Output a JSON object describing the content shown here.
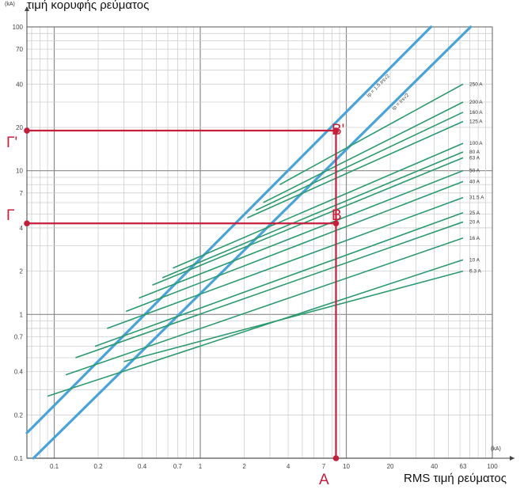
{
  "chart_data": {
    "type": "line",
    "scale": "log-log",
    "ylabel": "τιμή κορυφής ρεύματος",
    "xlabel": "RMS τιμή ρεύματος",
    "y_unit": "(kA)",
    "x_unit": "(kA)",
    "xlim": [
      0.065,
      100
    ],
    "ylim": [
      0.1,
      100
    ],
    "x_ticks": [
      {
        "v": 0.1,
        "t": "0.1"
      },
      {
        "v": 0.2,
        "t": "0.2"
      },
      {
        "v": 0.4,
        "t": "0.4"
      },
      {
        "v": 0.7,
        "t": "0.7"
      },
      {
        "v": 1,
        "t": "1"
      },
      {
        "v": 2,
        "t": "2"
      },
      {
        "v": 4,
        "t": "4"
      },
      {
        "v": 7,
        "t": "7"
      },
      {
        "v": 10,
        "t": "10"
      },
      {
        "v": 20,
        "t": "20"
      },
      {
        "v": 40,
        "t": "40"
      },
      {
        "v": 63,
        "t": "63"
      },
      {
        "v": 100,
        "t": "100"
      }
    ],
    "y_ticks": [
      {
        "v": 0.1,
        "t": "0.1"
      },
      {
        "v": 0.2,
        "t": "0.2"
      },
      {
        "v": 0.4,
        "t": "0.4"
      },
      {
        "v": 0.7,
        "t": "0.7"
      },
      {
        "v": 1,
        "t": "1"
      },
      {
        "v": 2,
        "t": "2"
      },
      {
        "v": 4,
        "t": "4"
      },
      {
        "v": 7,
        "t": "7"
      },
      {
        "v": 10,
        "t": "10"
      },
      {
        "v": 20,
        "t": "20"
      },
      {
        "v": 40,
        "t": "40"
      },
      {
        "v": 70,
        "t": "70"
      },
      {
        "v": 100,
        "t": "100"
      }
    ],
    "grid": true,
    "limit_lines": [
      {
        "name": "Ip = 1.5 Irs√2",
        "color": "#4aa3d8",
        "points": [
          [
            0.065,
            0.15
          ],
          [
            38,
            100
          ]
        ]
      },
      {
        "name": "Ip = Irs√2",
        "color": "#4aa3d8",
        "points": [
          [
            0.072,
            0.1
          ],
          [
            71,
            100
          ]
        ]
      }
    ],
    "series": [
      {
        "name": "250 A",
        "color": "#2a9a6e",
        "points": [
          [
            3.5,
            8
          ],
          [
            63,
            40
          ]
        ]
      },
      {
        "name": "200 A",
        "color": "#2a9a6e",
        "points": [
          [
            2.7,
            6
          ],
          [
            63,
            30
          ]
        ]
      },
      {
        "name": "160 A",
        "color": "#2a9a6e",
        "points": [
          [
            2.4,
            5.3
          ],
          [
            63,
            25.5
          ]
        ]
      },
      {
        "name": "125 A",
        "color": "#2a9a6e",
        "points": [
          [
            2.1,
            4.7
          ],
          [
            63,
            22
          ]
        ]
      },
      {
        "name": "100 A",
        "color": "#2a9a6e",
        "points": [
          [
            0.65,
            2.1
          ],
          [
            63,
            15.5
          ]
        ]
      },
      {
        "name": "80 A",
        "color": "#2a9a6e",
        "points": [
          [
            0.55,
            1.8
          ],
          [
            63,
            13.5
          ]
        ]
      },
      {
        "name": "63 A",
        "color": "#2a9a6e",
        "points": [
          [
            0.47,
            1.6
          ],
          [
            63,
            12.3
          ]
        ]
      },
      {
        "name": "50 A",
        "color": "#2a9a6e",
        "points": [
          [
            0.38,
            1.3
          ],
          [
            63,
            10
          ]
        ]
      },
      {
        "name": "40 A",
        "color": "#2a9a6e",
        "points": [
          [
            0.31,
            1.05
          ],
          [
            63,
            8.4
          ]
        ]
      },
      {
        "name": "31.5 A",
        "color": "#2a9a6e",
        "points": [
          [
            0.23,
            0.8
          ],
          [
            63,
            6.5
          ]
        ]
      },
      {
        "name": "25 A",
        "color": "#2a9a6e",
        "points": [
          [
            0.19,
            0.6
          ],
          [
            63,
            5.1
          ]
        ]
      },
      {
        "name": "20 A",
        "color": "#2a9a6e",
        "points": [
          [
            0.14,
            0.5
          ],
          [
            63,
            4.4
          ]
        ]
      },
      {
        "name": "16 A",
        "color": "#2a9a6e",
        "points": [
          [
            0.12,
            0.38
          ],
          [
            63,
            3.4
          ]
        ]
      },
      {
        "name": "10 A",
        "color": "#2a9a6e",
        "points": [
          [
            0.09,
            0.27
          ],
          [
            63,
            2.4
          ]
        ]
      },
      {
        "name": "6.3 A",
        "color": "#2a9a6e",
        "points": [
          [
            0.3,
            0.47
          ],
          [
            63,
            2
          ]
        ]
      }
    ],
    "construction_lines": {
      "color": "#c41e3a",
      "vertical_x": 8.5,
      "points": [
        {
          "label": "A",
          "x": 8.5,
          "y": 0.1
        },
        {
          "label": "B",
          "x": 8.5,
          "y": 4.3
        },
        {
          "label": "B'",
          "x": 8.5,
          "y": 19
        },
        {
          "label": "Γ'",
          "x": 0.065,
          "y": 19
        },
        {
          "label": "Γ",
          "x": 0.065,
          "y": 4.3
        }
      ]
    }
  }
}
